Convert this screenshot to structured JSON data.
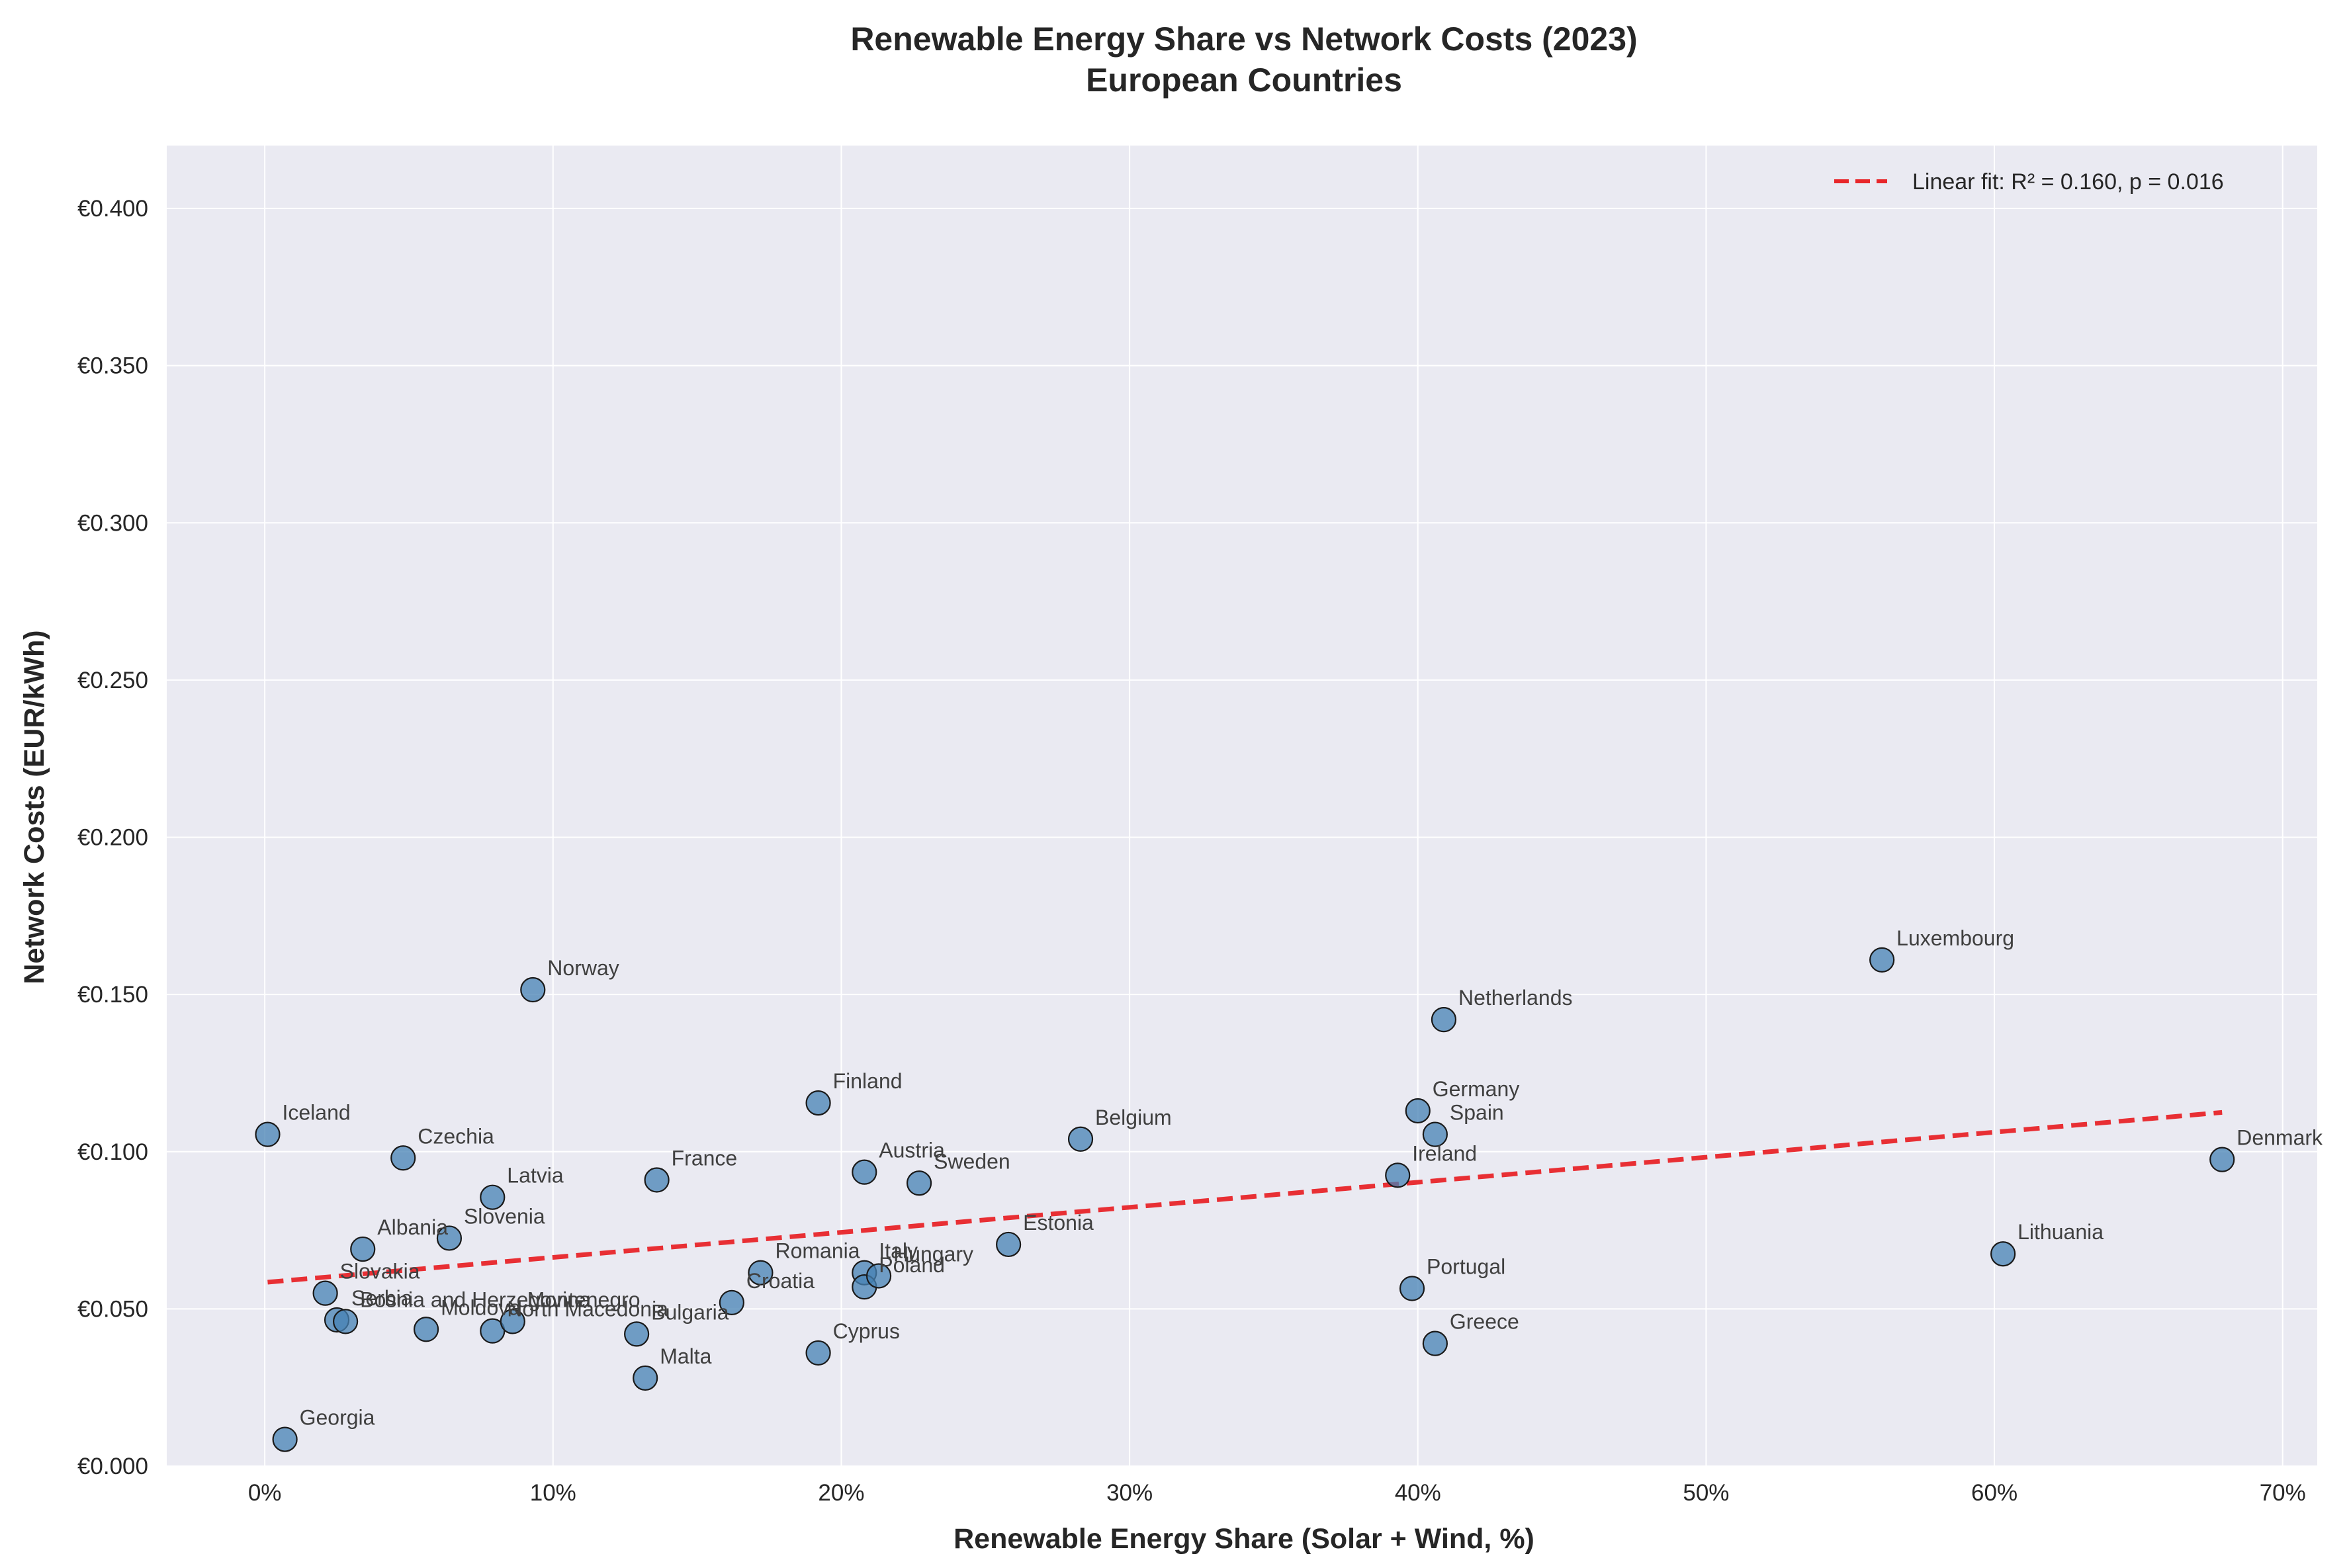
{
  "title_line1": "Renewable Energy Share vs Network Costs (2023)",
  "title_line2": "European Countries",
  "colors": {
    "background": "#ffffff",
    "plot_bg": "#eaeaf2",
    "grid": "#ffffff",
    "marker_fill": "#4682b4",
    "marker_edge": "#1a1a1a",
    "fit_line": "#e8262a"
  },
  "chart_data": {
    "type": "scatter",
    "xlabel": "Renewable Energy Share (Solar + Wind, %)",
    "ylabel": "Network Costs (EUR/kWh)",
    "xlim": [
      -3.4,
      71.2
    ],
    "ylim": [
      0.0,
      0.42
    ],
    "x_ticks": [
      0,
      10,
      20,
      30,
      40,
      50,
      60,
      70
    ],
    "x_tick_labels": [
      "0%",
      "10%",
      "20%",
      "30%",
      "40%",
      "50%",
      "60%",
      "70%"
    ],
    "y_ticks": [
      0.0,
      0.05,
      0.1,
      0.15,
      0.2,
      0.25,
      0.3,
      0.35,
      0.4
    ],
    "y_tick_labels": [
      "€0.000",
      "€0.050",
      "€0.100",
      "€0.150",
      "€0.200",
      "€0.250",
      "€0.300",
      "€0.350",
      "€0.400"
    ],
    "grid": true,
    "legend_position": "top-right",
    "fit": {
      "label": "Linear fit: R² = 0.160, p = 0.016",
      "x": [
        0.1,
        67.9
      ],
      "y": [
        0.0585,
        0.1125
      ]
    },
    "points": [
      {
        "label": "Iceland",
        "x": 0.1,
        "y": 0.1055
      },
      {
        "label": "Georgia",
        "x": 0.7,
        "y": 0.0085
      },
      {
        "label": "Slovakia",
        "x": 2.1,
        "y": 0.055
      },
      {
        "label": "Serbia",
        "x": 2.5,
        "y": 0.0465
      },
      {
        "label": "Bosnia and Herzegovina",
        "x": 2.8,
        "y": 0.046
      },
      {
        "label": "Albania",
        "x": 3.4,
        "y": 0.069
      },
      {
        "label": "Czechia",
        "x": 4.8,
        "y": 0.098
      },
      {
        "label": "Moldova",
        "x": 5.6,
        "y": 0.0435
      },
      {
        "label": "Slovenia",
        "x": 6.4,
        "y": 0.0725
      },
      {
        "label": "Latvia",
        "x": 7.9,
        "y": 0.0855
      },
      {
        "label": "North Macedonia",
        "x": 7.9,
        "y": 0.043
      },
      {
        "label": "Montenegro",
        "x": 8.6,
        "y": 0.046
      },
      {
        "label": "Norway",
        "x": 9.3,
        "y": 0.1515
      },
      {
        "label": "Bulgaria",
        "x": 12.9,
        "y": 0.042
      },
      {
        "label": "Malta",
        "x": 13.2,
        "y": 0.028
      },
      {
        "label": "France",
        "x": 13.6,
        "y": 0.091
      },
      {
        "label": "Croatia",
        "x": 16.2,
        "y": 0.052
      },
      {
        "label": "Romania",
        "x": 17.2,
        "y": 0.0615
      },
      {
        "label": "Finland",
        "x": 19.2,
        "y": 0.1155
      },
      {
        "label": "Cyprus",
        "x": 19.2,
        "y": 0.036
      },
      {
        "label": "Austria",
        "x": 20.8,
        "y": 0.0935
      },
      {
        "label": "Italy",
        "x": 20.8,
        "y": 0.0615
      },
      {
        "label": "Poland",
        "x": 20.8,
        "y": 0.057
      },
      {
        "label": "Hungary",
        "x": 21.3,
        "y": 0.0605
      },
      {
        "label": "Sweden",
        "x": 22.7,
        "y": 0.09
      },
      {
        "label": "Estonia",
        "x": 25.8,
        "y": 0.0705
      },
      {
        "label": "Belgium",
        "x": 28.3,
        "y": 0.104
      },
      {
        "label": "Ireland",
        "x": 39.3,
        "y": 0.0925
      },
      {
        "label": "Portugal",
        "x": 39.8,
        "y": 0.0565
      },
      {
        "label": "Germany",
        "x": 40.0,
        "y": 0.113
      },
      {
        "label": "Spain",
        "x": 40.6,
        "y": 0.1055
      },
      {
        "label": "Greece",
        "x": 40.6,
        "y": 0.039
      },
      {
        "label": "Netherlands",
        "x": 40.9,
        "y": 0.142
      },
      {
        "label": "Luxembourg",
        "x": 56.1,
        "y": 0.161
      },
      {
        "label": "Lithuania",
        "x": 60.3,
        "y": 0.0675
      },
      {
        "label": "Denmark",
        "x": 67.9,
        "y": 0.0975
      }
    ]
  }
}
